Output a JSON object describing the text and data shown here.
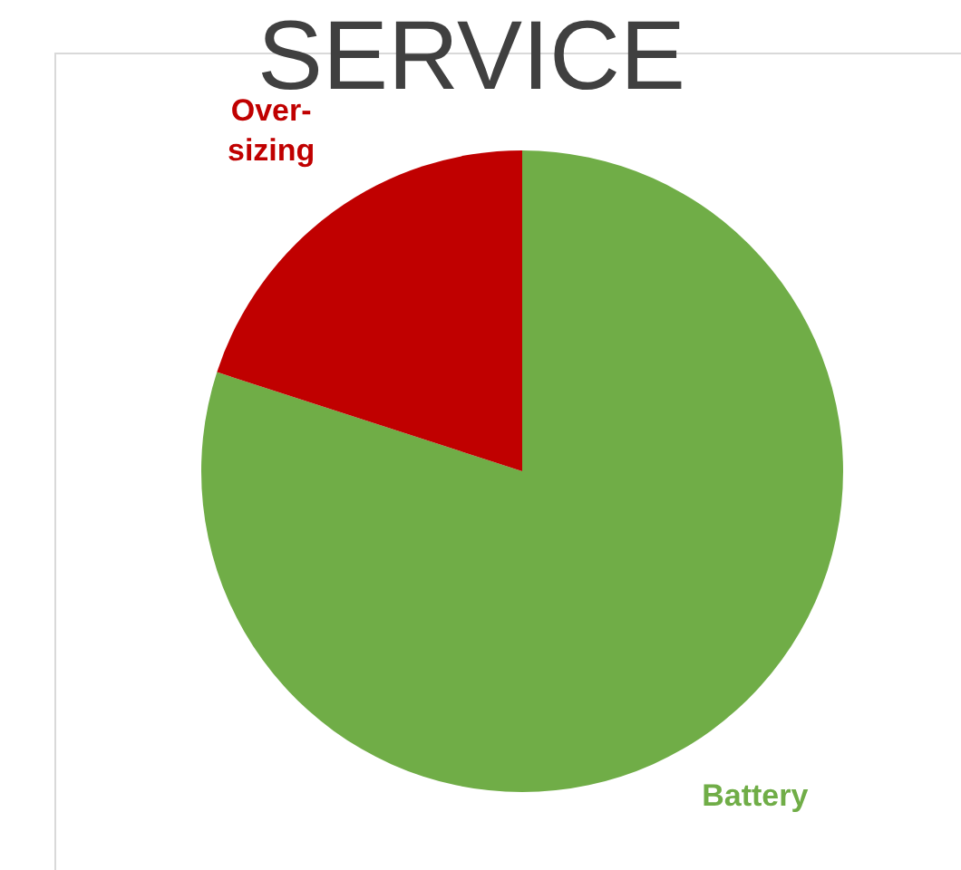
{
  "chart_data": {
    "type": "pie",
    "title": "SERVICE",
    "categories": [
      "Battery",
      "Over-sizing"
    ],
    "values": [
      80,
      20
    ],
    "colors": [
      "#70ad47",
      "#c00000"
    ]
  }
}
